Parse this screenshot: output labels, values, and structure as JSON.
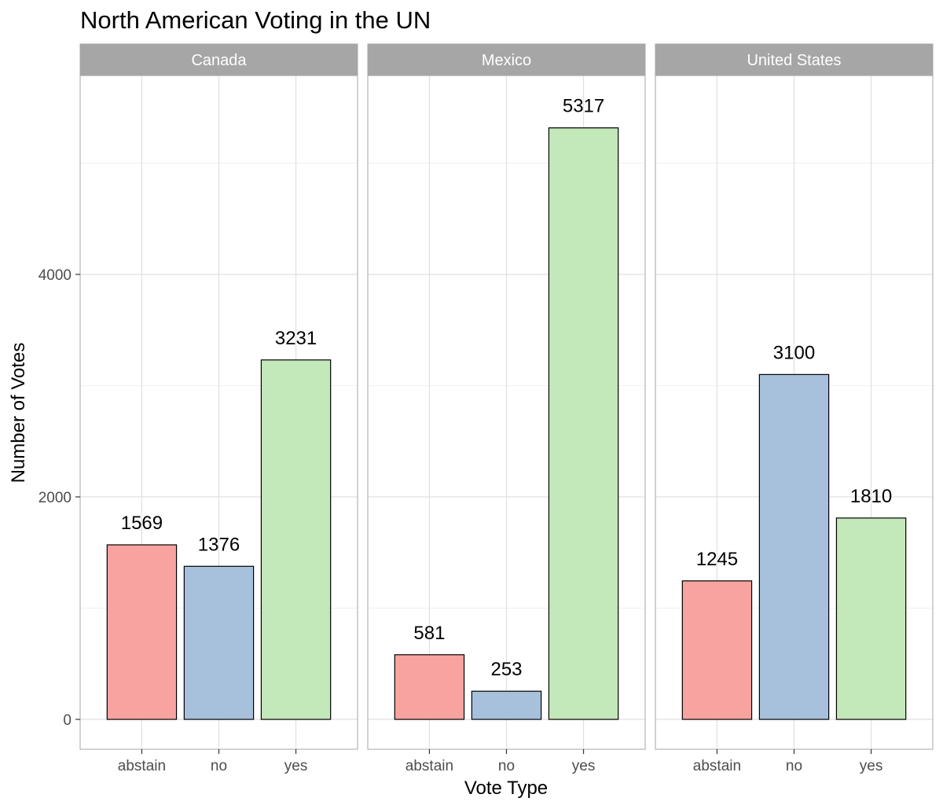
{
  "chart_data": {
    "type": "bar",
    "title": "North American Voting in the UN",
    "xlabel": "Vote Type",
    "ylabel": "Number of Votes",
    "categories": [
      "abstain",
      "no",
      "yes"
    ],
    "category_colors": [
      "#f8a39f",
      "#a7c1dc",
      "#c3e8b9"
    ],
    "ylim": [
      -260,
      5620
    ],
    "yticks": [
      0,
      2000,
      4000
    ],
    "grid": true,
    "legend": "none",
    "facets": [
      {
        "name": "Canada",
        "values": [
          1569,
          1376,
          3231
        ]
      },
      {
        "name": "Mexico",
        "values": [
          581,
          253,
          5317
        ]
      },
      {
        "name": "United States",
        "values": [
          1245,
          3100,
          1810
        ]
      }
    ]
  }
}
